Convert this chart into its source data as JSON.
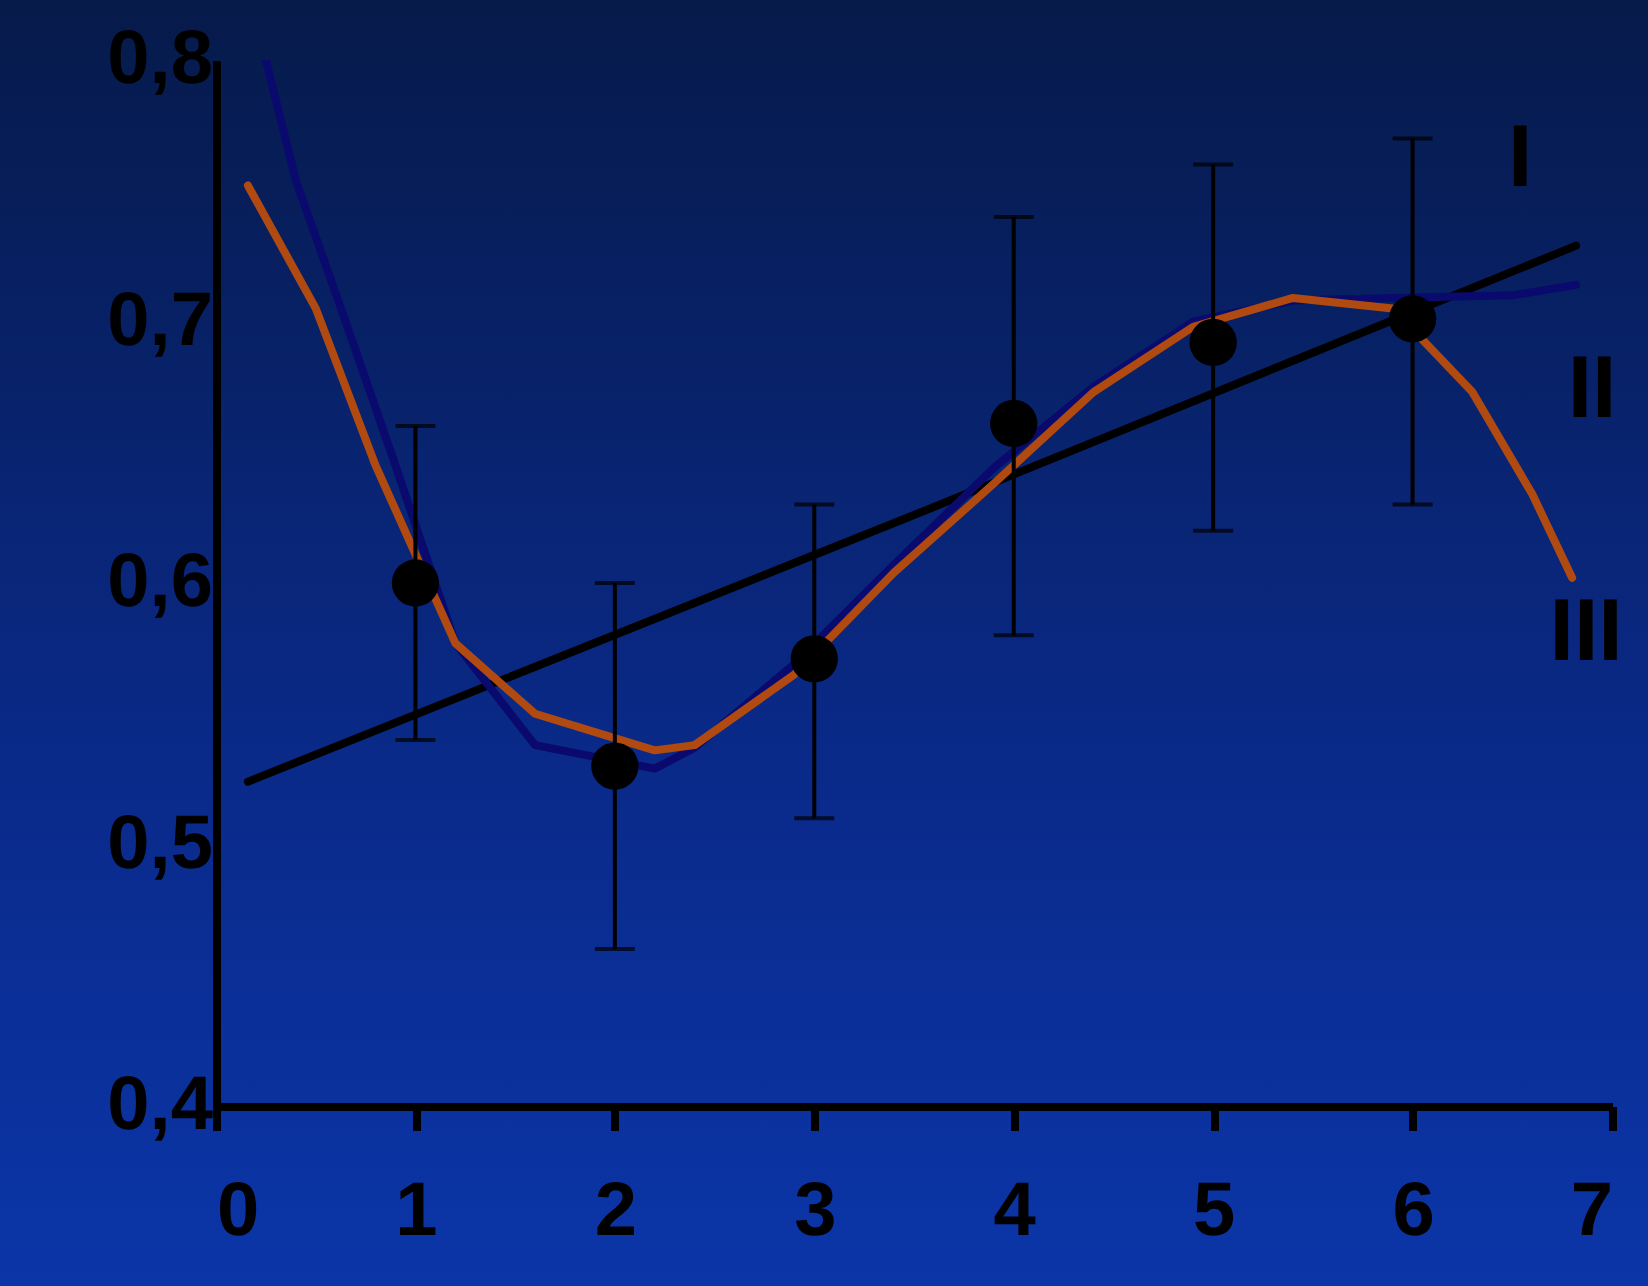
{
  "chart_data": {
    "type": "line",
    "xlim": [
      0,
      7
    ],
    "ylim": [
      0.4,
      0.8
    ],
    "xticks": [
      0,
      1,
      2,
      3,
      4,
      5,
      6,
      7
    ],
    "yticks": [
      {
        "value": 0.4,
        "label": "0,4"
      },
      {
        "value": 0.5,
        "label": "0,5"
      },
      {
        "value": 0.6,
        "label": "0,6"
      },
      {
        "value": 0.7,
        "label": "0,7"
      },
      {
        "value": 0.8,
        "label": "0,8"
      }
    ],
    "grid": false,
    "series": [
      {
        "name": "I",
        "color": "#000000",
        "x": [
          0.16,
          3.5,
          6.82
        ],
        "values": [
          0.524,
          0.626,
          0.729
        ]
      },
      {
        "name": "II",
        "color": "#0a0a6e",
        "x": [
          0.25,
          0.4,
          0.65,
          0.9,
          1.2,
          1.6,
          2.2,
          2.4,
          2.9,
          3.4,
          3.9,
          4.4,
          4.9,
          5.4,
          5.9,
          6.5,
          6.82
        ],
        "values": [
          0.8,
          0.754,
          0.7,
          0.645,
          0.577,
          0.538,
          0.529,
          0.537,
          0.569,
          0.607,
          0.644,
          0.675,
          0.7,
          0.708,
          0.709,
          0.71,
          0.714
        ]
      },
      {
        "name": "III",
        "color": "#b04a10",
        "x": [
          0.16,
          0.5,
          0.8,
          1.2,
          1.6,
          2.2,
          2.4,
          2.9,
          3.4,
          3.9,
          4.4,
          4.9,
          5.4,
          5.9,
          6.3,
          6.6,
          6.8
        ],
        "values": [
          0.752,
          0.705,
          0.645,
          0.577,
          0.55,
          0.536,
          0.538,
          0.565,
          0.604,
          0.638,
          0.673,
          0.698,
          0.709,
          0.705,
          0.673,
          0.634,
          0.602
        ]
      },
      {
        "type": "scatter",
        "color": "#000000",
        "marker": "circle",
        "x": [
          1,
          2,
          3,
          4,
          5,
          6
        ],
        "values": [
          0.6,
          0.53,
          0.571,
          0.661,
          0.692,
          0.701
        ],
        "errors": [
          [
            0.54,
            0.66
          ],
          [
            0.46,
            0.6
          ],
          [
            0.51,
            0.63
          ],
          [
            0.58,
            0.74
          ],
          [
            0.62,
            0.76
          ],
          [
            0.63,
            0.77
          ]
        ]
      }
    ]
  }
}
